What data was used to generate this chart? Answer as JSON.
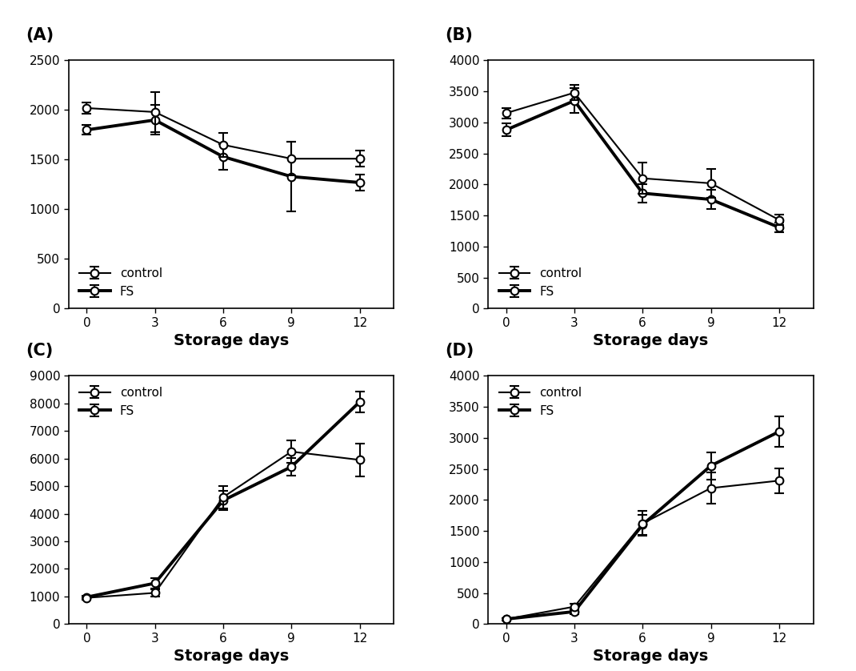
{
  "x": [
    0,
    3,
    6,
    9,
    12
  ],
  "panels": {
    "A": {
      "label": "(A)",
      "control_y": [
        2020,
        1980,
        1650,
        1510,
        1510
      ],
      "control_err": [
        60,
        200,
        120,
        170,
        80
      ],
      "fs_y": [
        1800,
        1900,
        1530,
        1330,
        1270
      ],
      "fs_err": [
        50,
        150,
        130,
        350,
        80
      ],
      "ylim": [
        0,
        2500
      ],
      "yticks": [
        0,
        500,
        1000,
        1500,
        2000,
        2500
      ],
      "legend_loc": "lower left"
    },
    "B": {
      "label": "(B)",
      "control_y": [
        3150,
        3480,
        2100,
        2020,
        1430
      ],
      "control_err": [
        80,
        120,
        250,
        230,
        80
      ],
      "fs_y": [
        2880,
        3350,
        1860,
        1760,
        1310
      ],
      "fs_err": [
        100,
        200,
        150,
        150,
        80
      ],
      "ylim": [
        0,
        4000
      ],
      "yticks": [
        0,
        500,
        1000,
        1500,
        2000,
        2500,
        3000,
        3500,
        4000
      ],
      "legend_loc": "lower left"
    },
    "C": {
      "label": "(C)",
      "control_y": [
        950,
        1130,
        4600,
        6250,
        5950
      ],
      "control_err": [
        60,
        120,
        400,
        400,
        600
      ],
      "fs_y": [
        975,
        1480,
        4480,
        5700,
        8050
      ],
      "fs_err": [
        40,
        180,
        350,
        320,
        380
      ],
      "ylim": [
        0,
        9000
      ],
      "yticks": [
        0,
        1000,
        2000,
        3000,
        4000,
        5000,
        6000,
        7000,
        8000,
        9000
      ],
      "legend_loc": "upper left"
    },
    "D": {
      "label": "(D)",
      "control_y": [
        80,
        280,
        1620,
        2190,
        2310
      ],
      "control_err": [
        20,
        50,
        200,
        250,
        200
      ],
      "fs_y": [
        80,
        200,
        1600,
        2550,
        3100
      ],
      "fs_err": [
        20,
        40,
        160,
        220,
        250
      ],
      "ylim": [
        0,
        4000
      ],
      "yticks": [
        0,
        500,
        1000,
        1500,
        2000,
        2500,
        3000,
        3500,
        4000
      ],
      "legend_loc": "upper left"
    }
  },
  "xlabel": "Storage days",
  "control_lw": 1.5,
  "fs_lw": 2.8,
  "markersize": 7,
  "control_mfc": "white",
  "fs_mfc": "white",
  "legend_control": "control",
  "legend_fs": "FS",
  "background_color": "#ffffff",
  "line_color": "black",
  "label_fontsize": 14,
  "tick_fontsize": 11,
  "legend_fontsize": 11,
  "panel_label_fontsize": 15
}
